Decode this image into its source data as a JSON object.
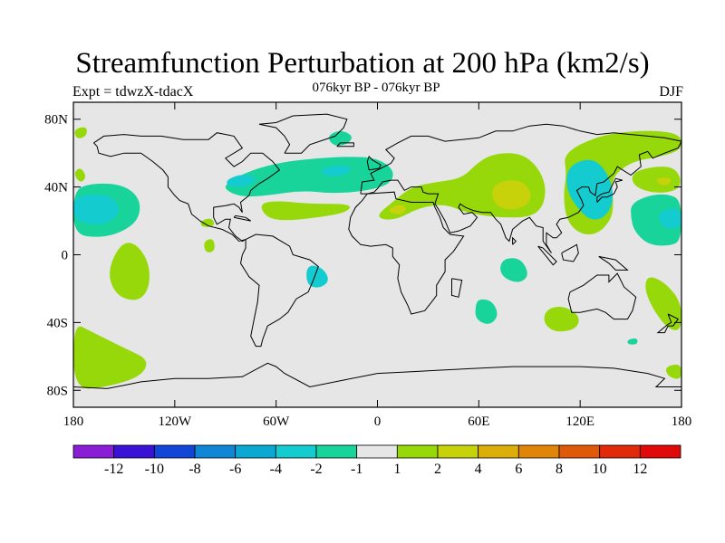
{
  "title": "Streamfunction Perturbation at 200 hPa (km2/s)",
  "subtitle": "076kyr BP - 076kyr BP",
  "left_label": "Expt = tdwzX-tdacX",
  "right_label": "DJF",
  "map": {
    "projection": "cylindrical-equidistant",
    "lon_range": [
      -180,
      180
    ],
    "lat_range": [
      -90,
      90
    ],
    "x_ticks": [
      {
        "lon": -180,
        "label": "180"
      },
      {
        "lon": -120,
        "label": "120W"
      },
      {
        "lon": -60,
        "label": "60W"
      },
      {
        "lon": 0,
        "label": "0"
      },
      {
        "lon": 60,
        "label": "60E"
      },
      {
        "lon": 120,
        "label": "120E"
      },
      {
        "lon": 180,
        "label": "180"
      }
    ],
    "y_ticks": [
      {
        "lat": 80,
        "label": "80N"
      },
      {
        "lat": 40,
        "label": "40N"
      },
      {
        "lat": 0,
        "label": "0"
      },
      {
        "lat": -40,
        "label": "40S"
      },
      {
        "lat": -80,
        "label": "80S"
      }
    ],
    "background_color": "#e6e6e6"
  },
  "colorbar": {
    "colors": [
      "#8a1ed6",
      "#3a12d6",
      "#1246d6",
      "#0f86d6",
      "#0aa8d2",
      "#14ccd0",
      "#18d39a",
      "#e6e6e6",
      "#96d80a",
      "#c8d20a",
      "#dcae0a",
      "#e0850a",
      "#e0580a",
      "#e02a0a",
      "#e00a0a"
    ],
    "labels": [
      "-12",
      "-10",
      "-8",
      "-6",
      "-4",
      "-2",
      "-1",
      "1",
      "2",
      "4",
      "6",
      "8",
      "10",
      "12"
    ]
  },
  "chart_data": {
    "type": "heatmap",
    "title": "Streamfunction Perturbation at 200 hPa (km2/s)",
    "subtitle": "076kyr BP - 076kyr BP",
    "xlabel": "",
    "ylabel": "",
    "xlim": [
      -180,
      180
    ],
    "ylim": [
      -90,
      90
    ],
    "levels": [
      -12,
      -10,
      -8,
      -6,
      -4,
      -2,
      -1,
      1,
      2,
      4,
      6,
      8,
      10,
      12
    ],
    "regions": [
      {
        "level_index": 6,
        "points": [
          [
            -180,
            38
          ],
          [
            -170,
            42
          ],
          [
            -155,
            42
          ],
          [
            -145,
            38
          ],
          [
            -140,
            30
          ],
          [
            -142,
            20
          ],
          [
            -152,
            13
          ],
          [
            -165,
            10
          ],
          [
            -180,
            12
          ]
        ]
      },
      {
        "level_index": 5,
        "points": [
          [
            -180,
            34
          ],
          [
            -168,
            36
          ],
          [
            -156,
            34
          ],
          [
            -152,
            25
          ],
          [
            -160,
            18
          ],
          [
            -172,
            18
          ],
          [
            -180,
            22
          ]
        ]
      },
      {
        "level_index": 8,
        "points": [
          [
            -180,
            48
          ],
          [
            -176,
            52
          ],
          [
            -172,
            46
          ],
          [
            -176,
            42
          ]
        ]
      },
      {
        "level_index": 6,
        "points": [
          [
            -90,
            42
          ],
          [
            -75,
            50
          ],
          [
            -55,
            55
          ],
          [
            -35,
            57
          ],
          [
            -15,
            58
          ],
          [
            0,
            57
          ],
          [
            10,
            50
          ],
          [
            8,
            42
          ],
          [
            -5,
            38
          ],
          [
            -25,
            36
          ],
          [
            -45,
            38
          ],
          [
            -65,
            35
          ],
          [
            -80,
            34
          ],
          [
            -90,
            38
          ]
        ]
      },
      {
        "level_index": 5,
        "points": [
          [
            -35,
            50
          ],
          [
            -25,
            53
          ],
          [
            -15,
            52
          ],
          [
            -18,
            47
          ],
          [
            -30,
            46
          ]
        ]
      },
      {
        "level_index": 5,
        "points": [
          [
            -90,
            44
          ],
          [
            -80,
            48
          ],
          [
            -70,
            45
          ],
          [
            -78,
            40
          ],
          [
            -88,
            40
          ]
        ]
      },
      {
        "level_index": 6,
        "points": [
          [
            -30,
            70
          ],
          [
            -22,
            74
          ],
          [
            -14,
            70
          ],
          [
            -18,
            65
          ],
          [
            -26,
            64
          ]
        ]
      },
      {
        "level_index": 8,
        "points": [
          [
            -180,
            74
          ],
          [
            -172,
            76
          ],
          [
            -172,
            70
          ],
          [
            -178,
            68
          ]
        ]
      },
      {
        "level_index": 8,
        "points": [
          [
            -70,
            30
          ],
          [
            -60,
            32
          ],
          [
            -40,
            30
          ],
          [
            -15,
            30
          ],
          [
            -18,
            25
          ],
          [
            -35,
            22
          ],
          [
            -55,
            20
          ],
          [
            -66,
            22
          ]
        ]
      },
      {
        "level_index": 8,
        "points": [
          [
            -105,
            20
          ],
          [
            -98,
            22
          ],
          [
            -96,
            17
          ],
          [
            -104,
            16
          ]
        ]
      },
      {
        "level_index": 8,
        "points": [
          [
            -103,
            8
          ],
          [
            -97,
            10
          ],
          [
            -96,
            2
          ],
          [
            -102,
            1
          ]
        ]
      },
      {
        "level_index": 8,
        "points": [
          [
            -152,
            7
          ],
          [
            -143,
            7
          ],
          [
            -135,
            -5
          ],
          [
            -135,
            -20
          ],
          [
            -142,
            -28
          ],
          [
            -155,
            -24
          ],
          [
            -160,
            -10
          ]
        ]
      },
      {
        "level_index": 5,
        "points": [
          [
            -42,
            -6
          ],
          [
            -33,
            -7
          ],
          [
            -28,
            -15
          ],
          [
            -34,
            -20
          ],
          [
            -42,
            -18
          ]
        ]
      },
      {
        "level_index": 8,
        "points": [
          [
            -180,
            -40
          ],
          [
            -170,
            -45
          ],
          [
            -150,
            -55
          ],
          [
            -135,
            -62
          ],
          [
            -140,
            -72
          ],
          [
            -160,
            -78
          ],
          [
            -180,
            -80
          ]
        ]
      },
      {
        "level_index": 8,
        "points": [
          [
            -2,
            22
          ],
          [
            10,
            32
          ],
          [
            20,
            40
          ],
          [
            35,
            43
          ],
          [
            50,
            45
          ],
          [
            60,
            55
          ],
          [
            70,
            60
          ],
          [
            85,
            60
          ],
          [
            95,
            52
          ],
          [
            100,
            40
          ],
          [
            98,
            28
          ],
          [
            90,
            22
          ],
          [
            70,
            22
          ],
          [
            52,
            25
          ],
          [
            40,
            30
          ],
          [
            25,
            28
          ],
          [
            10,
            20
          ]
        ]
      },
      {
        "level_index": 9,
        "points": [
          [
            5,
            26
          ],
          [
            12,
            30
          ],
          [
            18,
            28
          ],
          [
            14,
            23
          ]
        ]
      },
      {
        "level_index": 9,
        "points": [
          [
            68,
            40
          ],
          [
            75,
            44
          ],
          [
            85,
            44
          ],
          [
            92,
            36
          ],
          [
            88,
            28
          ],
          [
            75,
            26
          ],
          [
            68,
            32
          ]
        ]
      },
      {
        "level_index": 8,
        "points": [
          [
            110,
            60
          ],
          [
            130,
            70
          ],
          [
            150,
            73
          ],
          [
            170,
            73
          ],
          [
            180,
            70
          ],
          [
            180,
            62
          ],
          [
            168,
            58
          ],
          [
            150,
            55
          ],
          [
            138,
            45
          ],
          [
            140,
            30
          ],
          [
            138,
            20
          ],
          [
            130,
            12
          ],
          [
            120,
            12
          ],
          [
            112,
            20
          ],
          [
            110,
            35
          ],
          [
            112,
            48
          ]
        ]
      },
      {
        "level_index": 5,
        "points": [
          [
            112,
            50
          ],
          [
            120,
            56
          ],
          [
            130,
            56
          ],
          [
            138,
            45
          ],
          [
            140,
            32
          ],
          [
            135,
            22
          ],
          [
            126,
            20
          ],
          [
            118,
            28
          ],
          [
            112,
            38
          ]
        ]
      },
      {
        "level_index": 8,
        "points": [
          [
            150,
            48
          ],
          [
            162,
            52
          ],
          [
            175,
            52
          ],
          [
            180,
            45
          ],
          [
            178,
            38
          ],
          [
            165,
            36
          ],
          [
            152,
            40
          ]
        ]
      },
      {
        "level_index": 9,
        "points": [
          [
            164,
            44
          ],
          [
            170,
            46
          ],
          [
            175,
            44
          ],
          [
            170,
            40
          ]
        ]
      },
      {
        "level_index": 6,
        "points": [
          [
            150,
            30
          ],
          [
            160,
            35
          ],
          [
            172,
            36
          ],
          [
            180,
            32
          ],
          [
            180,
            8
          ],
          [
            172,
            5
          ],
          [
            160,
            6
          ],
          [
            152,
            14
          ],
          [
            150,
            22
          ]
        ]
      },
      {
        "level_index": 5,
        "points": [
          [
            165,
            24
          ],
          [
            175,
            28
          ],
          [
            180,
            25
          ],
          [
            180,
            16
          ],
          [
            170,
            15
          ]
        ]
      },
      {
        "level_index": 6,
        "points": [
          [
            75,
            -2
          ],
          [
            85,
            -2
          ],
          [
            90,
            -12
          ],
          [
            84,
            -17
          ],
          [
            75,
            -14
          ],
          [
            72,
            -8
          ]
        ]
      },
      {
        "level_index": 6,
        "points": [
          [
            60,
            -26
          ],
          [
            68,
            -27
          ],
          [
            72,
            -36
          ],
          [
            66,
            -42
          ],
          [
            58,
            -38
          ],
          [
            58,
            -30
          ]
        ]
      },
      {
        "level_index": 8,
        "points": [
          [
            100,
            -32
          ],
          [
            110,
            -30
          ],
          [
            120,
            -36
          ],
          [
            118,
            -44
          ],
          [
            105,
            -46
          ],
          [
            98,
            -40
          ]
        ]
      },
      {
        "level_index": 8,
        "points": [
          [
            160,
            -12
          ],
          [
            170,
            -16
          ],
          [
            180,
            -28
          ],
          [
            180,
            -45
          ],
          [
            172,
            -44
          ],
          [
            163,
            -32
          ],
          [
            158,
            -20
          ]
        ]
      },
      {
        "level_index": 6,
        "points": [
          [
            148,
            -50
          ],
          [
            154,
            -49
          ],
          [
            154,
            -53
          ],
          [
            148,
            -53
          ]
        ]
      },
      {
        "level_index": 8,
        "points": [
          [
            170,
            -66
          ],
          [
            180,
            -64
          ],
          [
            180,
            -74
          ],
          [
            172,
            -72
          ]
        ]
      }
    ]
  }
}
